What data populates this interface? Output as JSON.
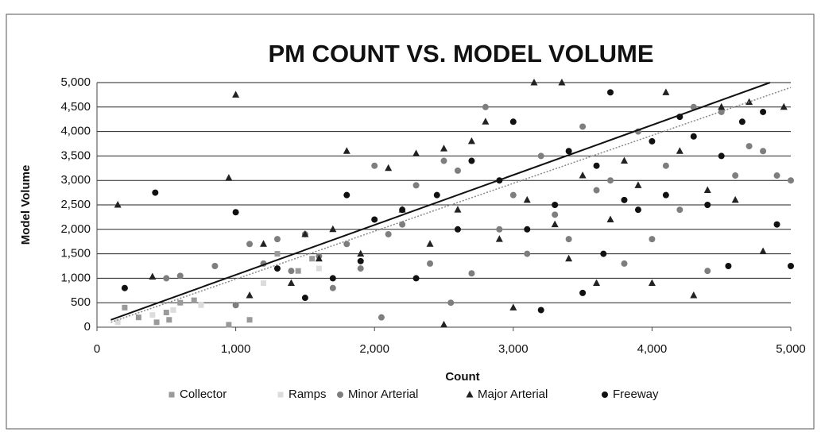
{
  "chart_data": {
    "type": "scatter",
    "title": "PM COUNT VS.  MODEL VOLUME",
    "x_label": "Count",
    "y_label": "Model Volume",
    "xlim": [
      0,
      5000
    ],
    "ylim": [
      0,
      5000
    ],
    "xticks": [
      0,
      {
        "value": 1000,
        "label": "1,000"
      },
      {
        "value": 2000,
        "label": "2,000"
      },
      {
        "value": 3000,
        "label": "3,000"
      },
      {
        "value": 4000,
        "label": "4,000"
      },
      {
        "value": 5000,
        "label": "5,000"
      }
    ],
    "yticks": [
      0,
      500,
      {
        "value": 1000,
        "label": "1,000"
      },
      {
        "value": 1500,
        "label": "1,500"
      },
      {
        "value": 2000,
        "label": "2,000"
      },
      {
        "value": 2500,
        "label": "2,500"
      },
      {
        "value": 3000,
        "label": "3,000"
      },
      {
        "value": 3500,
        "label": "3,500"
      },
      {
        "value": 4000,
        "label": "4,000"
      },
      {
        "value": 4500,
        "label": "4,500"
      },
      {
        "value": 5000,
        "label": "5,000"
      }
    ],
    "grid": true,
    "legend": "bottom",
    "series": [
      {
        "name": "Collector",
        "color": "#9a9a9a",
        "marker": "square",
        "x": [
          200,
          300,
          430,
          500,
          520,
          600,
          700,
          950,
          1100,
          1300,
          1450,
          1550
        ],
        "values": [
          400,
          200,
          100,
          300,
          150,
          500,
          550,
          50,
          150,
          1500,
          1150,
          1400
        ]
      },
      {
        "name": "Ramps",
        "color": "#dcdcdc",
        "marker": "square",
        "x": [
          150,
          400,
          550,
          750,
          1200,
          1600
        ],
        "values": [
          100,
          250,
          350,
          450,
          900,
          1200
        ]
      },
      {
        "name": "Minor Arterial",
        "color": "#7e7e7e",
        "marker": "circle",
        "x": [
          500,
          600,
          850,
          1000,
          1100,
          1200,
          1300,
          1400,
          1500,
          1600,
          1700,
          1800,
          1900,
          2000,
          2100,
          2200,
          2300,
          2400,
          2500,
          2600,
          2700,
          2800,
          2900,
          3000,
          3100,
          3200,
          3300,
          3400,
          3500,
          3600,
          3700,
          3800,
          3900,
          4000,
          4100,
          4200,
          4300,
          4400,
          4500,
          4600,
          4700,
          4800,
          4900,
          5000,
          2050,
          2550
        ],
        "values": [
          1000,
          1050,
          1250,
          450,
          1700,
          1300,
          1800,
          1150,
          1900,
          1450,
          800,
          1700,
          1200,
          3300,
          1900,
          2100,
          2900,
          1300,
          3400,
          3200,
          1100,
          4500,
          2000,
          2700,
          1500,
          3500,
          2300,
          1800,
          4100,
          2800,
          3000,
          1300,
          4000,
          1800,
          3300,
          2400,
          4500,
          1150,
          4400,
          3100,
          3700,
          3600,
          3100,
          3000,
          200,
          500
        ]
      },
      {
        "name": "Major Arterial",
        "color": "#222222",
        "marker": "triangle",
        "x": [
          950,
          1000,
          1100,
          1200,
          1400,
          1500,
          1600,
          1700,
          1800,
          1900,
          2100,
          2200,
          2300,
          2400,
          2500,
          2600,
          2700,
          2800,
          2900,
          3000,
          3100,
          3150,
          3300,
          3350,
          3400,
          3500,
          3600,
          3700,
          3800,
          3900,
          4000,
          4100,
          4200,
          4300,
          4400,
          4500,
          4600,
          4700,
          4800,
          4950,
          2500,
          400,
          150
        ],
        "values": [
          3050,
          4750,
          650,
          1700,
          900,
          1900,
          1400,
          2000,
          3600,
          1500,
          3250,
          2400,
          3550,
          1700,
          3650,
          2400,
          3800,
          4200,
          1800,
          400,
          2600,
          5000,
          2100,
          5000,
          1400,
          3100,
          900,
          2200,
          3400,
          2900,
          900,
          4800,
          3600,
          650,
          2800,
          4500,
          2600,
          4600,
          1550,
          4500,
          50,
          1030,
          2500
        ]
      },
      {
        "name": "Freeway",
        "color": "#111111",
        "marker": "circle",
        "x": [
          200,
          420,
          1000,
          1300,
          1500,
          1700,
          1800,
          1900,
          2000,
          2200,
          2300,
          2450,
          2600,
          2700,
          2900,
          3000,
          3100,
          3200,
          3300,
          3400,
          3500,
          3600,
          3700,
          3800,
          3900,
          4000,
          4100,
          4200,
          4300,
          4400,
          4500,
          4650,
          4800,
          4900,
          5000,
          4550,
          3650
        ],
        "values": [
          800,
          2750,
          2350,
          1200,
          600,
          1000,
          2700,
          1350,
          2200,
          2400,
          1000,
          2700,
          2000,
          3400,
          3000,
          4200,
          2000,
          350,
          2500,
          3600,
          700,
          3300,
          4800,
          2600,
          2400,
          3800,
          2700,
          4300,
          3900,
          2500,
          3500,
          4200,
          4400,
          2100,
          1250,
          1250,
          1500
        ]
      }
    ],
    "trendlines": [
      {
        "color": "#111111",
        "dash": false,
        "x": [
          100,
          4850
        ],
        "y": [
          150,
          5000
        ]
      },
      {
        "color": "#888888",
        "dash": true,
        "x": [
          100,
          5000
        ],
        "y": [
          100,
          4900
        ]
      }
    ]
  }
}
